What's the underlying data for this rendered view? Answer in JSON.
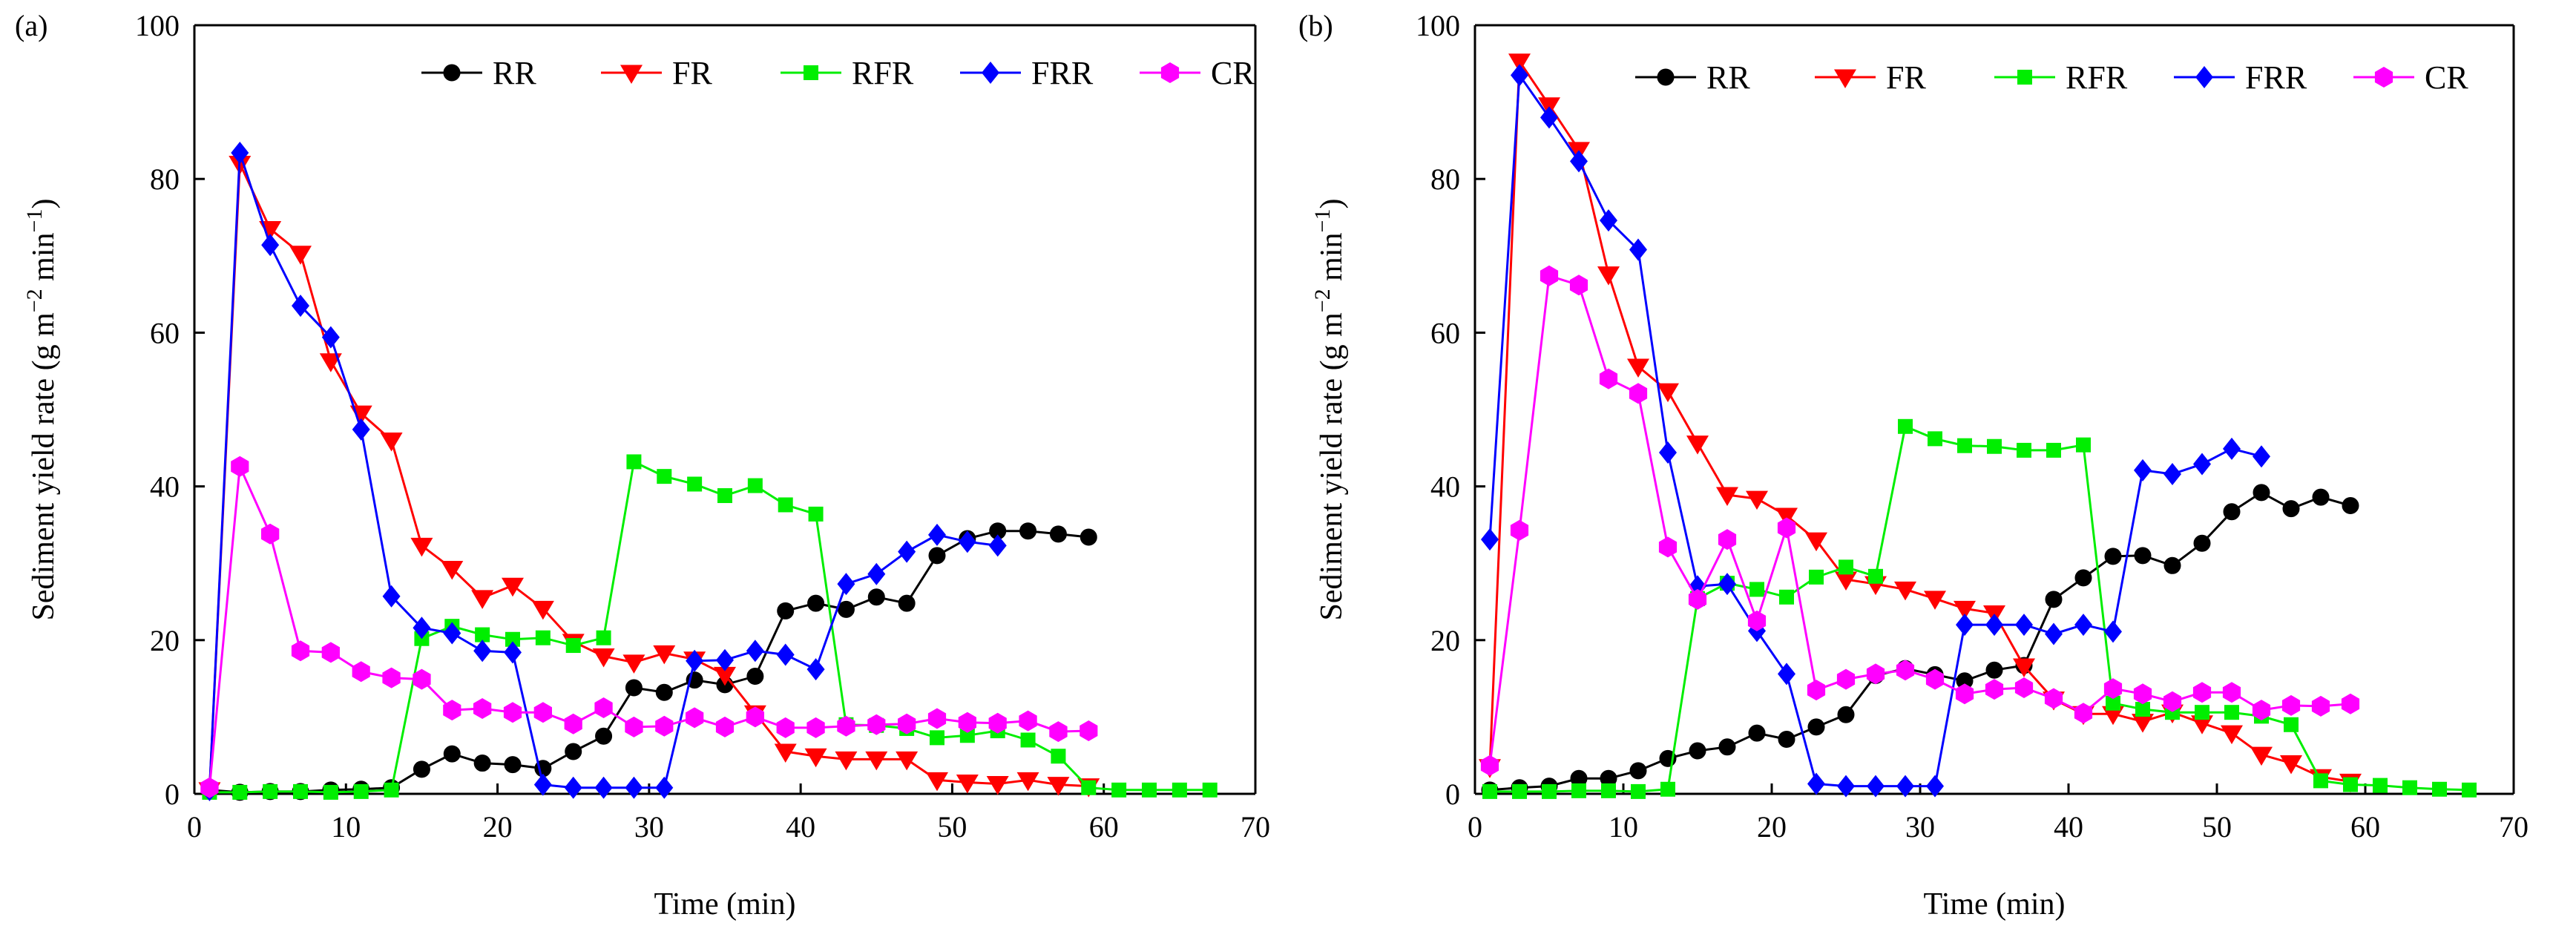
{
  "figure": {
    "colors": {
      "RR": "#000000",
      "FR": "#ff0000",
      "RFR": "#00ee00",
      "FRR": "#0000ff",
      "CR": "#ff00ff"
    }
  },
  "chart_data": [
    {
      "type": "line",
      "panel_label": "(a)",
      "xlabel": "Time (min)",
      "ylabel": "Sediment yield rate (g m",
      "ylabel_sup1": "−2",
      "ylabel_mid": " min",
      "ylabel_sup2": "−1",
      "ylabel_end": ")",
      "xlim": [
        0,
        70
      ],
      "ylim": [
        0,
        100
      ],
      "xticks": [
        0,
        10,
        20,
        30,
        40,
        50,
        60,
        70
      ],
      "yticks": [
        0,
        20,
        40,
        60,
        80,
        100
      ],
      "legend_position": "top-right",
      "series": [
        {
          "name": "RR",
          "color": "#000000",
          "marker": "circle",
          "x": [
            1,
            3,
            5,
            7,
            9,
            11,
            13,
            15,
            17,
            19,
            21,
            23,
            25,
            27,
            29,
            31,
            33,
            35,
            37,
            39,
            41,
            43,
            45,
            47,
            49,
            51,
            53,
            55,
            57,
            59
          ],
          "y": [
            0.5,
            0.2,
            0.3,
            0.3,
            0.5,
            0.6,
            0.8,
            3.2,
            5.2,
            4.0,
            3.8,
            3.3,
            5.5,
            7.5,
            13.8,
            13.2,
            14.8,
            14.2,
            15.3,
            23.8,
            24.8,
            24.0,
            25.6,
            24.8,
            31.0,
            33.2,
            34.2,
            34.2,
            33.8,
            33.4
          ]
        },
        {
          "name": "FR",
          "color": "#ff0000",
          "marker": "triangle-down",
          "x": [
            1,
            3,
            5,
            7,
            9,
            11,
            13,
            15,
            17,
            19,
            21,
            23,
            25,
            27,
            29,
            31,
            33,
            35,
            37,
            39,
            41,
            43,
            45,
            47,
            49,
            51,
            53,
            55,
            57,
            59
          ],
          "y": [
            0.5,
            82.0,
            73.5,
            70.3,
            56.3,
            49.5,
            46.0,
            32.3,
            29.3,
            25.5,
            27.1,
            24.1,
            19.8,
            17.9,
            17.1,
            18.3,
            17.5,
            15.5,
            10.5,
            5.5,
            4.9,
            4.5,
            4.5,
            4.5,
            1.8,
            1.5,
            1.3,
            1.8,
            1.2,
            1.0
          ]
        },
        {
          "name": "RFR",
          "color": "#00ee00",
          "marker": "square",
          "x": [
            1,
            3,
            5,
            7,
            9,
            11,
            13,
            15,
            17,
            19,
            21,
            23,
            25,
            27,
            29,
            31,
            33,
            35,
            37,
            39,
            41,
            43,
            45,
            47,
            49,
            51,
            53,
            55,
            57,
            59,
            61,
            63,
            65,
            67
          ],
          "y": [
            0.2,
            0.2,
            0.3,
            0.3,
            0.2,
            0.3,
            0.5,
            20.2,
            21.8,
            20.7,
            20.1,
            20.3,
            19.3,
            20.3,
            43.2,
            41.3,
            40.3,
            38.8,
            40.1,
            37.6,
            36.4,
            9.0,
            8.9,
            8.5,
            7.3,
            7.6,
            8.2,
            7.0,
            4.9,
            0.8,
            0.5,
            0.5,
            0.5,
            0.5
          ]
        },
        {
          "name": "FRR",
          "color": "#0000ff",
          "marker": "diamond",
          "x": [
            1,
            3,
            5,
            7,
            9,
            11,
            13,
            15,
            17,
            19,
            21,
            23,
            25,
            27,
            29,
            31,
            33,
            35,
            37,
            39,
            41,
            43,
            45,
            47,
            49,
            51,
            53
          ],
          "y": [
            0.5,
            83.4,
            71.4,
            63.5,
            59.4,
            47.4,
            25.7,
            21.6,
            20.9,
            18.6,
            18.4,
            1.2,
            0.8,
            0.8,
            0.8,
            0.8,
            17.3,
            17.4,
            18.6,
            18.1,
            16.2,
            27.3,
            28.6,
            31.5,
            33.7,
            32.8,
            32.3
          ]
        },
        {
          "name": "CR",
          "color": "#ff00ff",
          "marker": "hexagon",
          "x": [
            1,
            3,
            5,
            7,
            9,
            11,
            13,
            15,
            17,
            19,
            21,
            23,
            25,
            27,
            29,
            31,
            33,
            35,
            37,
            39,
            41,
            43,
            45,
            47,
            49,
            51,
            53,
            55,
            57,
            59
          ],
          "y": [
            0.8,
            42.6,
            33.8,
            18.6,
            18.4,
            15.9,
            15.1,
            14.9,
            10.9,
            11.1,
            10.6,
            10.6,
            9.1,
            11.2,
            8.7,
            8.8,
            9.9,
            8.7,
            10.0,
            8.6,
            8.6,
            8.8,
            9.0,
            9.1,
            9.8,
            9.3,
            9.2,
            9.5,
            8.1,
            8.2
          ]
        }
      ]
    },
    {
      "type": "line",
      "panel_label": "(b)",
      "xlabel": "Time (min)",
      "ylabel": "Sediment yield rate (g m",
      "ylabel_sup1": "−2",
      "ylabel_mid": " min",
      "ylabel_sup2": "−1",
      "ylabel_end": ")",
      "xlim": [
        0,
        70
      ],
      "ylim": [
        0,
        100
      ],
      "xticks": [
        0,
        10,
        20,
        30,
        40,
        50,
        60,
        70
      ],
      "yticks": [
        0,
        20,
        40,
        60,
        80,
        100
      ],
      "legend_position": "top-right",
      "series": [
        {
          "name": "RR",
          "color": "#000000",
          "marker": "circle",
          "x": [
            1,
            3,
            5,
            7,
            9,
            11,
            13,
            15,
            17,
            19,
            21,
            23,
            25,
            27,
            29,
            31,
            33,
            35,
            37,
            39,
            41,
            43,
            45,
            47,
            49,
            51,
            53,
            55,
            57,
            59
          ],
          "y": [
            0.5,
            0.8,
            1.0,
            2.0,
            2.0,
            3.0,
            4.6,
            5.6,
            6.1,
            7.9,
            7.1,
            8.7,
            10.3,
            15.4,
            16.3,
            15.5,
            14.7,
            16.1,
            16.7,
            25.3,
            28.1,
            30.9,
            31.0,
            29.7,
            32.6,
            36.7,
            39.2,
            37.1,
            38.6,
            37.5
          ]
        },
        {
          "name": "FR",
          "color": "#ff0000",
          "marker": "triangle-down",
          "x": [
            1,
            3,
            5,
            7,
            9,
            11,
            13,
            15,
            17,
            19,
            21,
            23,
            25,
            27,
            29,
            31,
            33,
            35,
            37,
            39,
            41,
            43,
            45,
            47,
            49,
            51,
            53,
            55,
            57,
            59
          ],
          "y": [
            3.5,
            95.3,
            89.6,
            83.8,
            67.6,
            55.6,
            52.4,
            45.6,
            38.9,
            38.4,
            36.2,
            33.0,
            27.9,
            27.3,
            26.6,
            25.4,
            24.1,
            23.5,
            16.6,
            12.3,
            10.4,
            10.4,
            9.4,
            10.6,
            9.2,
            7.9,
            5.1,
            4.0,
            2.2,
            1.6
          ]
        },
        {
          "name": "RFR",
          "color": "#00ee00",
          "marker": "square",
          "x": [
            1,
            3,
            5,
            7,
            9,
            11,
            13,
            15,
            17,
            19,
            21,
            23,
            25,
            27,
            29,
            31,
            33,
            35,
            37,
            39,
            41,
            43,
            45,
            47,
            49,
            51,
            53,
            55,
            57,
            59,
            61,
            63,
            65,
            67
          ],
          "y": [
            0.3,
            0.3,
            0.3,
            0.4,
            0.4,
            0.3,
            0.6,
            25.4,
            27.4,
            26.6,
            25.6,
            28.2,
            29.5,
            28.3,
            47.8,
            46.2,
            45.3,
            45.2,
            44.7,
            44.7,
            45.4,
            11.8,
            11.0,
            10.6,
            10.6,
            10.6,
            10.1,
            9.0,
            1.7,
            1.2,
            1.1,
            0.8,
            0.6,
            0.5
          ]
        },
        {
          "name": "FRR",
          "color": "#0000ff",
          "marker": "diamond",
          "x": [
            1,
            3,
            5,
            7,
            9,
            11,
            13,
            15,
            17,
            19,
            21,
            23,
            25,
            27,
            29,
            31,
            33,
            35,
            37,
            39,
            41,
            43,
            45,
            47,
            49,
            51,
            53
          ],
          "y": [
            33.1,
            93.5,
            88.0,
            82.3,
            74.6,
            70.8,
            44.4,
            27.0,
            27.3,
            21.2,
            15.6,
            1.3,
            1.0,
            1.0,
            1.0,
            1.0,
            22.0,
            22.0,
            22.0,
            20.8,
            22.0,
            21.1,
            42.1,
            41.6,
            42.9,
            44.9,
            43.9
          ]
        },
        {
          "name": "CR",
          "color": "#ff00ff",
          "marker": "hexagon",
          "x": [
            1,
            3,
            5,
            7,
            9,
            11,
            13,
            15,
            17,
            19,
            21,
            23,
            25,
            27,
            29,
            31,
            33,
            35,
            37,
            39,
            41,
            43,
            45,
            47,
            49,
            51,
            53,
            55,
            57,
            59
          ],
          "y": [
            3.7,
            34.3,
            67.4,
            66.2,
            54.0,
            52.1,
            32.1,
            25.3,
            33.1,
            22.5,
            34.6,
            13.5,
            14.9,
            15.6,
            16.1,
            14.9,
            13.0,
            13.6,
            13.8,
            12.4,
            10.5,
            13.7,
            13.0,
            12.0,
            13.2,
            13.2,
            10.9,
            11.5,
            11.4,
            11.7
          ]
        }
      ]
    }
  ]
}
